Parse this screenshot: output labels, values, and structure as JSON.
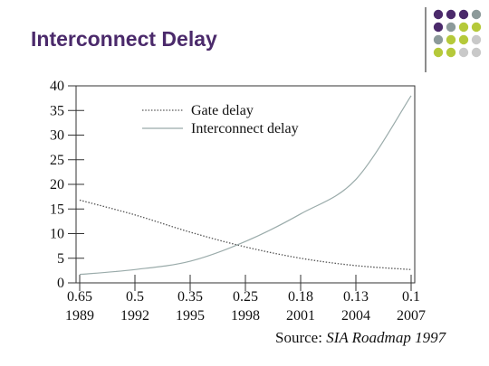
{
  "slide": {
    "title": "Interconnect Delay",
    "source_prefix": "Source:",
    "source_title": "SIA Roadmap 1997",
    "decoration": {
      "dot_colors": [
        "#4b2a6b",
        "#8c9a9a",
        "#b5c93a",
        "#c9c9c9"
      ]
    }
  },
  "chart_data": {
    "type": "line",
    "x_features": [
      "0.65",
      "0.5",
      "0.35",
      "0.25",
      "0.18",
      "0.13",
      "0.1"
    ],
    "x_years": [
      "1989",
      "1992",
      "1995",
      "1998",
      "2001",
      "2004",
      "2007"
    ],
    "ylim": [
      0,
      40
    ],
    "yticks": [
      0,
      5,
      10,
      15,
      20,
      25,
      30,
      35,
      40
    ],
    "grid": false,
    "legend_position": "top-center",
    "series": [
      {
        "name": "Gate delay",
        "style": "dotted",
        "color": "#555555",
        "values": [
          16.8,
          13.8,
          10.3,
          7.3,
          5.0,
          3.5,
          2.7
        ]
      },
      {
        "name": "Interconnect delay",
        "style": "solid",
        "color": "#9aabaa",
        "values": [
          1.7,
          2.7,
          4.4,
          8.4,
          14.0,
          21.0,
          38.0
        ]
      }
    ]
  }
}
